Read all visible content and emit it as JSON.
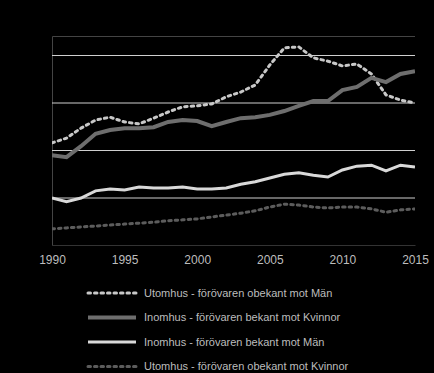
{
  "chart_data": {
    "type": "line",
    "x": [
      1990,
      1991,
      1992,
      1993,
      1994,
      1995,
      1996,
      1997,
      1998,
      1999,
      2000,
      2001,
      2002,
      2003,
      2004,
      2005,
      2006,
      2007,
      2008,
      2009,
      2010,
      2011,
      2012,
      2013,
      2014,
      2015
    ],
    "xlim": [
      1990,
      2015
    ],
    "xticks": [
      1990,
      1995,
      2000,
      2005,
      2010,
      2015
    ],
    "ylim": [
      0,
      4.4
    ],
    "yticks": [
      1,
      2,
      3,
      4
    ],
    "grid": true,
    "tick_labels": "x",
    "legend": "bottom",
    "series": [
      {
        "name": "Utomhus - förövaren obekant mot Män",
        "color": "#c8c8c8",
        "line_style": "dotted",
        "values": [
          2.15,
          2.25,
          2.46,
          2.63,
          2.69,
          2.59,
          2.55,
          2.67,
          2.8,
          2.91,
          2.93,
          2.97,
          3.12,
          3.22,
          3.37,
          3.79,
          4.15,
          4.17,
          3.94,
          3.87,
          3.77,
          3.81,
          3.6,
          3.16,
          3.05,
          2.99
        ]
      },
      {
        "name": "Inomhus - förövaren bekant mot Kvinnor",
        "color": "#6e6e6e",
        "line_style": "solid",
        "values": [
          1.89,
          1.85,
          2.08,
          2.34,
          2.42,
          2.46,
          2.46,
          2.48,
          2.59,
          2.63,
          2.61,
          2.5,
          2.59,
          2.67,
          2.69,
          2.74,
          2.82,
          2.93,
          3.03,
          3.03,
          3.26,
          3.33,
          3.52,
          3.43,
          3.6,
          3.66
        ]
      },
      {
        "name": "Inomhus - förövaren bekant mot Män",
        "color": "#d9d9d9",
        "line_style": "solid",
        "values": [
          0.99,
          0.91,
          0.99,
          1.14,
          1.18,
          1.16,
          1.22,
          1.2,
          1.2,
          1.22,
          1.18,
          1.18,
          1.2,
          1.28,
          1.33,
          1.41,
          1.49,
          1.52,
          1.47,
          1.43,
          1.58,
          1.66,
          1.68,
          1.56,
          1.68,
          1.64
        ]
      },
      {
        "name": "Utomhus - förövaren obekant mot Kvinnor",
        "color": "#5c5c5c",
        "line_style": "dotted",
        "values": [
          0.34,
          0.36,
          0.38,
          0.4,
          0.42,
          0.44,
          0.46,
          0.48,
          0.51,
          0.53,
          0.55,
          0.59,
          0.63,
          0.67,
          0.72,
          0.8,
          0.86,
          0.84,
          0.8,
          0.78,
          0.8,
          0.8,
          0.76,
          0.69,
          0.74,
          0.76
        ]
      }
    ]
  }
}
